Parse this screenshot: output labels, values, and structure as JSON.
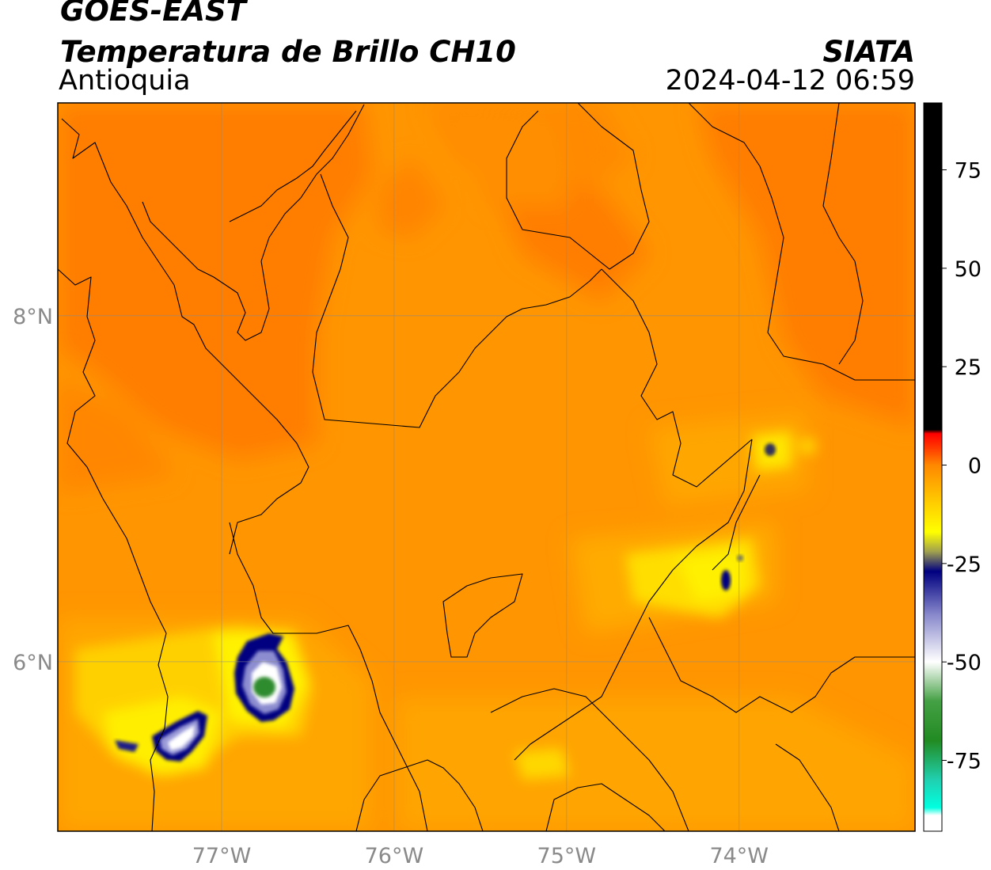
{
  "header": {
    "satellite": "GOES-EAST",
    "product": "Temperatura de Brillo CH10",
    "region": "Antioquia",
    "organization": "SIATA",
    "timestamp": "2024-04-12 06:59"
  },
  "map": {
    "lon_range": [
      -77.95,
      -72.98
    ],
    "lat_range": [
      5.02,
      9.23
    ],
    "lon_ticks": [
      {
        "value": -77,
        "label": "77°W"
      },
      {
        "value": -76,
        "label": "76°W"
      },
      {
        "value": -75,
        "label": "75°W"
      },
      {
        "value": -74,
        "label": "74°W"
      }
    ],
    "lat_ticks": [
      {
        "value": 8,
        "label": "8°N"
      },
      {
        "value": 6,
        "label": "6°N"
      }
    ],
    "gridlines": true,
    "colors": {
      "background_warm": "#ff9800",
      "background_hot": "#ff7a00",
      "mid": "#ffb000",
      "cool": "#fff000",
      "cold": "#000080",
      "colder": "#ffffff",
      "coldest": "#2e8b2e"
    }
  },
  "colorbar": {
    "unit_range": [
      -93,
      92
    ],
    "ticks": [
      75,
      50,
      25,
      0,
      -25,
      -50,
      -75
    ],
    "tick_labels": [
      "75",
      "50",
      "25",
      "0",
      "-25",
      "-50",
      "-75"
    ],
    "stops": [
      {
        "value": 92,
        "color": "#000000"
      },
      {
        "value": 9,
        "color": "#000000"
      },
      {
        "value": 8,
        "color": "#ff0000"
      },
      {
        "value": 4,
        "color": "#ff4000"
      },
      {
        "value": 0,
        "color": "#ff8800"
      },
      {
        "value": -10,
        "color": "#ffd000"
      },
      {
        "value": -17,
        "color": "#ffff00"
      },
      {
        "value": -22,
        "color": "#a0a050"
      },
      {
        "value": -27,
        "color": "#000080"
      },
      {
        "value": -38,
        "color": "#8888cc"
      },
      {
        "value": -50,
        "color": "#ffffff"
      },
      {
        "value": -60,
        "color": "#44a044"
      },
      {
        "value": -70,
        "color": "#228b22"
      },
      {
        "value": -80,
        "color": "#20d0b0"
      },
      {
        "value": -87,
        "color": "#00ffe0"
      },
      {
        "value": -89,
        "color": "#ffffff"
      },
      {
        "value": -93,
        "color": "#ffffff"
      }
    ]
  }
}
